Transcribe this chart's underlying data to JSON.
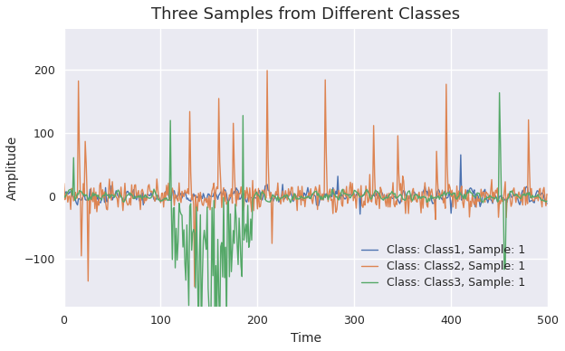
{
  "title": "Three Samples from Different Classes",
  "xlabel": "Time",
  "ylabel": "Amplitude",
  "n_samples": 500,
  "legend_labels": [
    "Class: Class1, Sample: 1",
    "Class: Class2, Sample: 1",
    "Class: Class3, Sample: 1"
  ],
  "line_colors": [
    "#4c72b0",
    "#dd8452",
    "#55a868"
  ],
  "ylim": [
    -175,
    265
  ],
  "xlim": [
    0,
    500
  ],
  "yticks": [
    -100,
    0,
    100,
    200
  ],
  "xticks": [
    0,
    100,
    200,
    300,
    400,
    500
  ],
  "title_fontsize": 13,
  "label_fontsize": 10,
  "tick_fontsize": 9,
  "legend_fontsize": 9,
  "line_width": 1.0
}
